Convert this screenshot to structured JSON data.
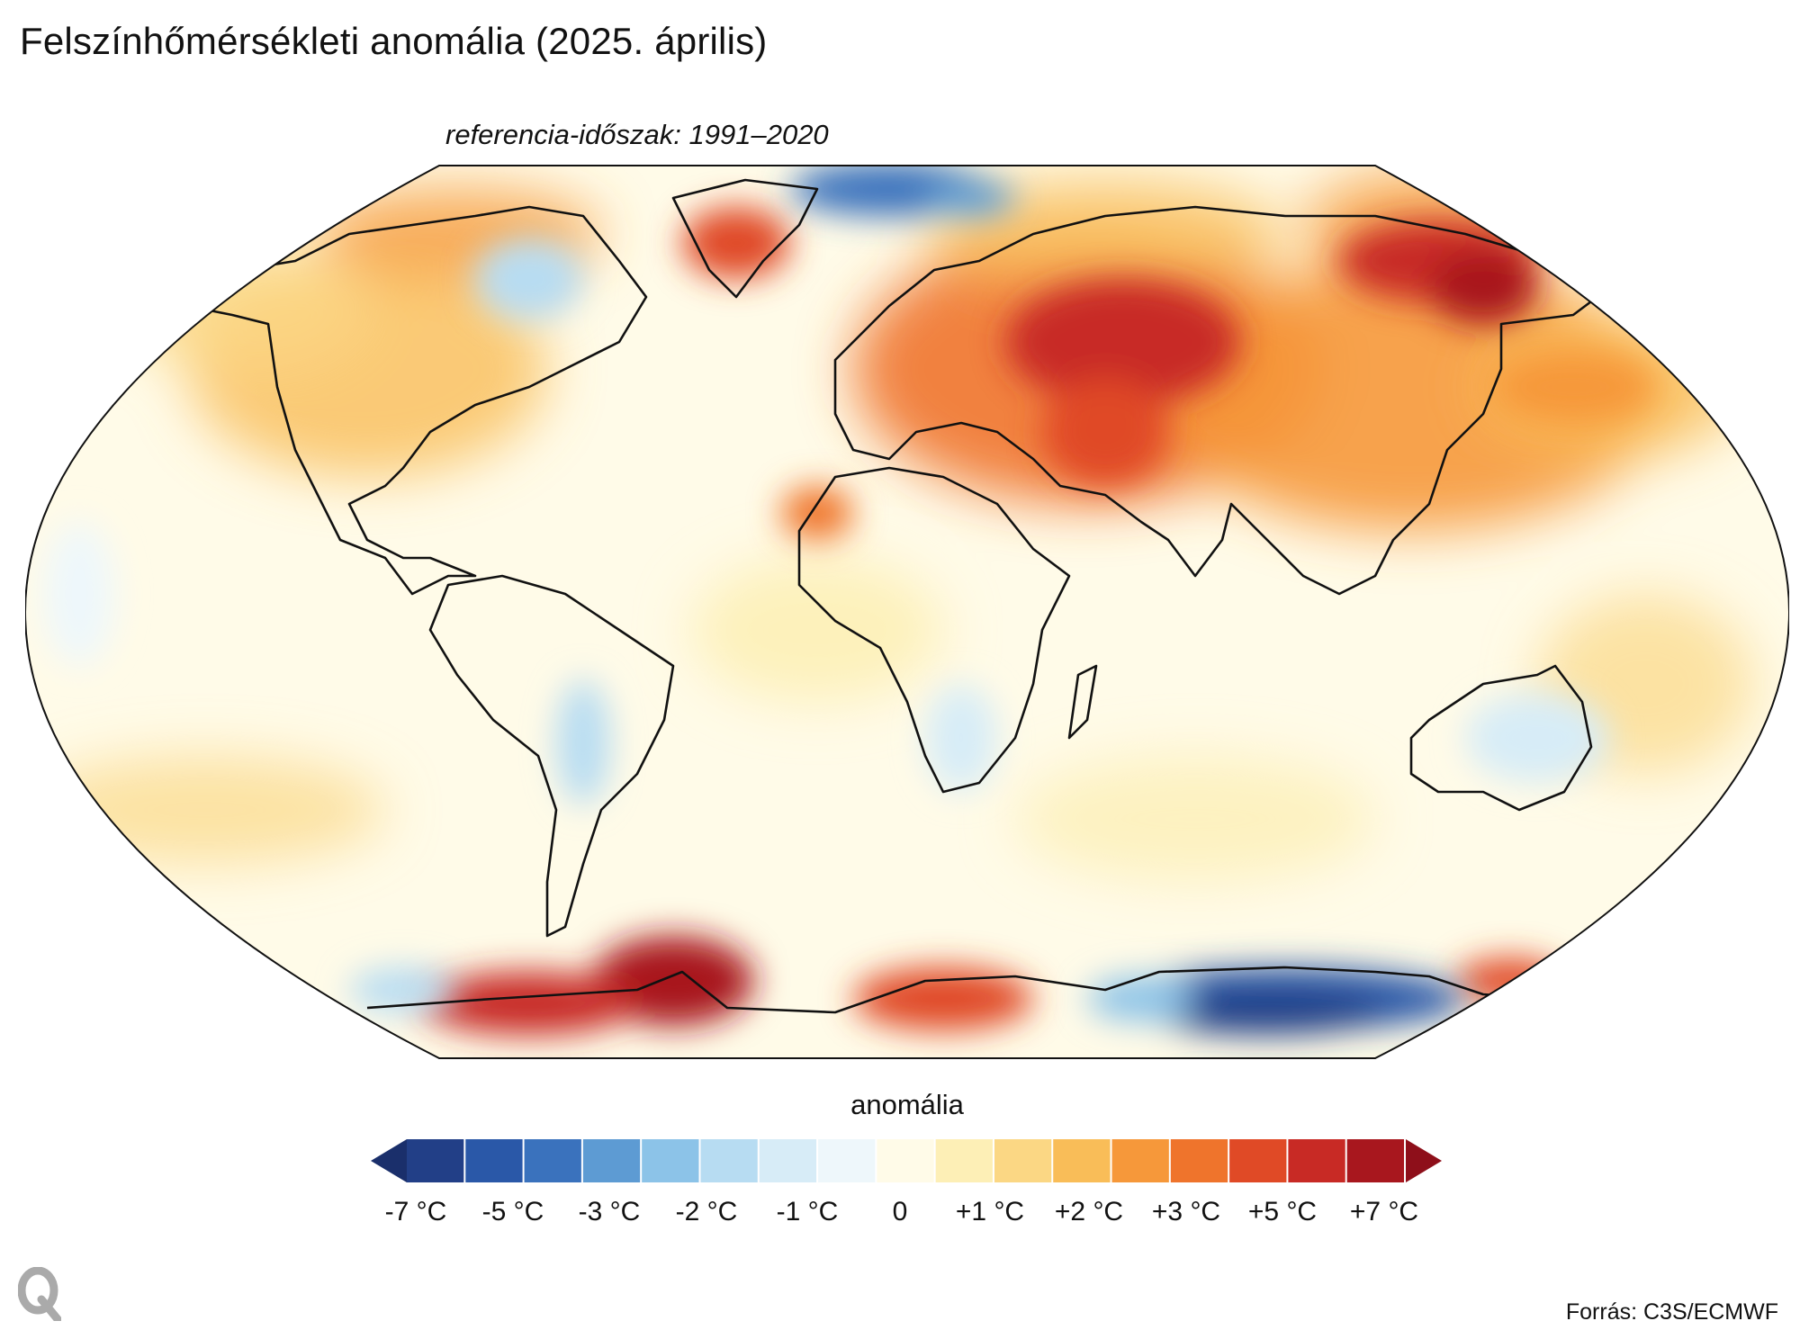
{
  "header": {
    "title": "Felszínhőmérsékleti anomália (2025. április)",
    "subtitle": "referencia-időszak: 1991–2020"
  },
  "legend": {
    "title": "anomália",
    "tick_labels": [
      "-7 °C",
      "-5 °C",
      "-3 °C",
      "-2 °C",
      "-1 °C",
      "0",
      "+1 °C",
      "+2 °C",
      "+3 °C",
      "+5 °C",
      "+7 °C"
    ],
    "colors": [
      "#1a2f6b",
      "#223f87",
      "#2a58a8",
      "#3a72bd",
      "#5d9bd3",
      "#8cc3e8",
      "#b7dcf2",
      "#d7ecf7",
      "#eef7fb",
      "#fffbe8",
      "#fdefb6",
      "#fbd784",
      "#f9bd58",
      "#f6983a",
      "#ef742c",
      "#e04a26",
      "#c82a25",
      "#a8171e",
      "#8e0f1a"
    ]
  },
  "map": {
    "projection": "Robinson",
    "variable": "surface air temperature anomaly"
  },
  "footer": {
    "logo": "Q",
    "source": "Forrás: C3S/ECMWF"
  }
}
